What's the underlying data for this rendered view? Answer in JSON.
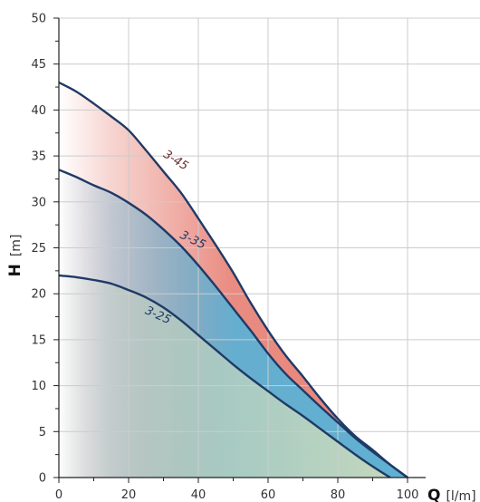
{
  "chart_data": {
    "type": "line",
    "x_label": {
      "symbol": "Q",
      "unit": "[l/m]"
    },
    "y_label": {
      "symbol": "H",
      "unit": "[m]"
    },
    "xlim": [
      0,
      100
    ],
    "ylim": [
      0,
      50
    ],
    "x_ticks": [
      0,
      20,
      40,
      60,
      80,
      100
    ],
    "y_ticks": [
      0,
      5,
      10,
      15,
      20,
      25,
      30,
      35,
      40,
      45,
      50
    ],
    "grid": true,
    "colors": {
      "curve_line": "#1f3a66",
      "fill_3_45": "#e8857a",
      "fill_3_35": "#5fb0d3",
      "fill_3_25": "#c6d8bd",
      "grid": "#cccccc",
      "axis": "#222222",
      "label_3_45": "#6b2a2a",
      "label_3_35": "#1f3a66",
      "label_3_25": "#1f3a66"
    },
    "series": [
      {
        "name": "3-45",
        "x": [
          0,
          5,
          10,
          15,
          20,
          25,
          30,
          35,
          40,
          45,
          50,
          55,
          60,
          65,
          70,
          75,
          80,
          85,
          90,
          95,
          100
        ],
        "y": [
          43,
          42,
          40.7,
          39.3,
          37.8,
          35.6,
          33.3,
          31,
          28.2,
          25.3,
          22.3,
          19,
          16,
          13.3,
          11,
          8.6,
          6.4,
          4.5,
          3,
          1.4,
          0
        ]
      },
      {
        "name": "3-35",
        "x": [
          0,
          5,
          10,
          15,
          20,
          25,
          30,
          35,
          40,
          45,
          50,
          55,
          60,
          65,
          70,
          75,
          80,
          85,
          90,
          95,
          100
        ],
        "y": [
          33.5,
          32.7,
          31.8,
          31,
          29.9,
          28.6,
          27,
          25.2,
          23.1,
          20.8,
          18.4,
          16,
          13.5,
          11.3,
          9.5,
          7.7,
          6,
          4.3,
          2.8,
          1.4,
          0
        ]
      },
      {
        "name": "3-25",
        "x": [
          0,
          5,
          10,
          15,
          20,
          25,
          30,
          35,
          40,
          45,
          50,
          55,
          60,
          65,
          70,
          75,
          80,
          85,
          90,
          95
        ],
        "y": [
          22,
          21.8,
          21.5,
          21.1,
          20.4,
          19.6,
          18.5,
          17.1,
          15.5,
          13.9,
          12.3,
          10.8,
          9.4,
          8,
          6.7,
          5.3,
          3.9,
          2.5,
          1.2,
          0
        ]
      }
    ],
    "curve_labels": [
      {
        "text": "3-45",
        "x": 33,
        "y": 34.2,
        "angle": 32
      },
      {
        "text": "3-35",
        "x": 38,
        "y": 25.5,
        "angle": 26
      },
      {
        "text": "3-25",
        "x": 28,
        "y": 17.3,
        "angle": 24
      }
    ]
  }
}
